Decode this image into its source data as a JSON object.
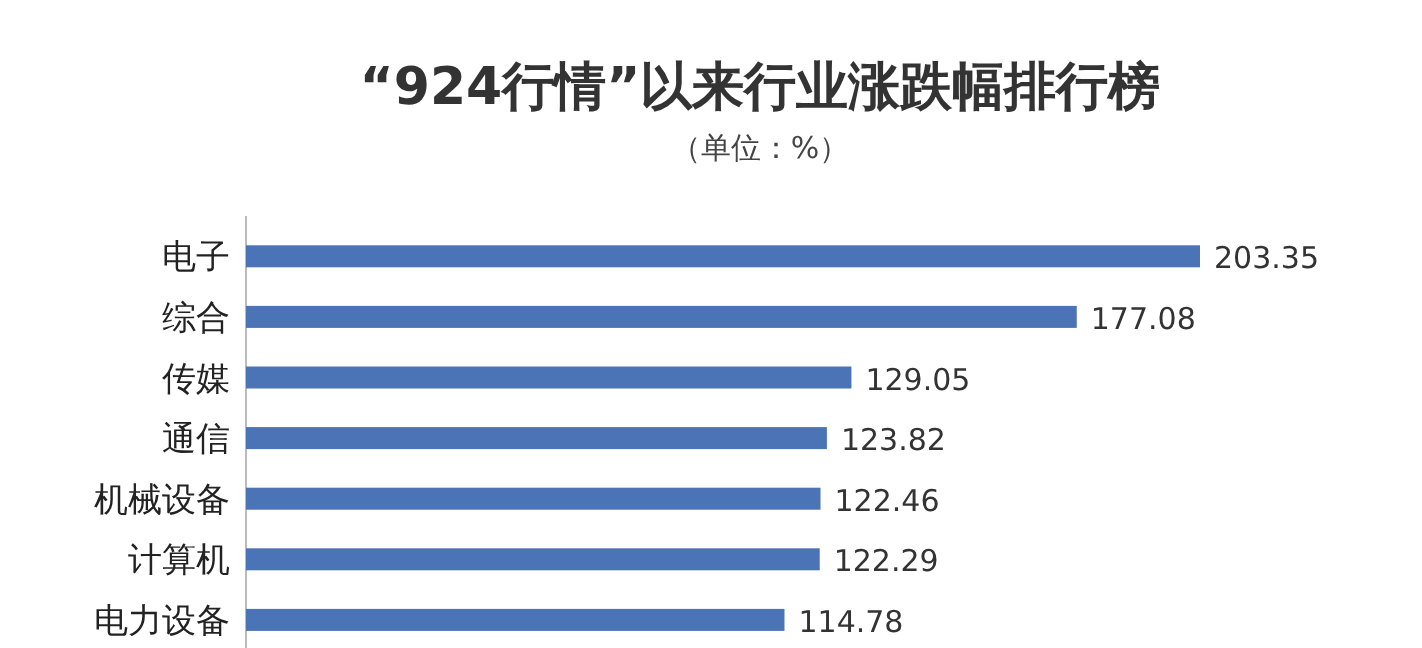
{
  "chart_data": {
    "type": "bar",
    "orientation": "horizontal",
    "title": "“924行情”以来行业涨跌幅排行榜",
    "subtitle": "（单位：%）",
    "categories": [
      "电子",
      "综合",
      "传媒",
      "通信",
      "机械设备",
      "计算机",
      "电力设备"
    ],
    "values": [
      203.35,
      177.08,
      129.05,
      123.82,
      122.46,
      122.29,
      114.78
    ],
    "color": "#4a74b5",
    "data_labels": true
  }
}
